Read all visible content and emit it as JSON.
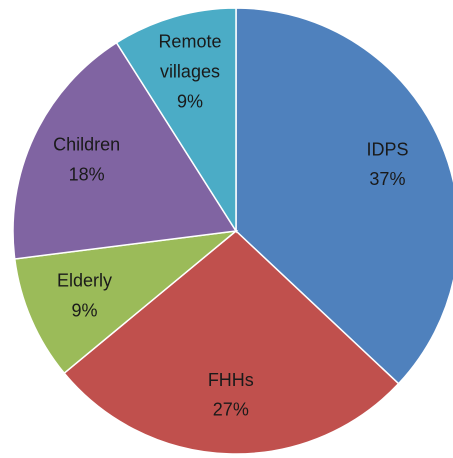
{
  "chart_data": {
    "type": "pie",
    "categories": [
      "IDPS",
      "FHHs",
      "Elderly",
      "Children",
      "Remote villages"
    ],
    "values": [
      37,
      27,
      9,
      18,
      9
    ],
    "value_labels": [
      "37%",
      "27%",
      "9%",
      "18%",
      "9%"
    ],
    "colors": [
      "#4f81bd",
      "#c0504d",
      "#9bbb59",
      "#8064a2",
      "#4bacc6"
    ]
  }
}
